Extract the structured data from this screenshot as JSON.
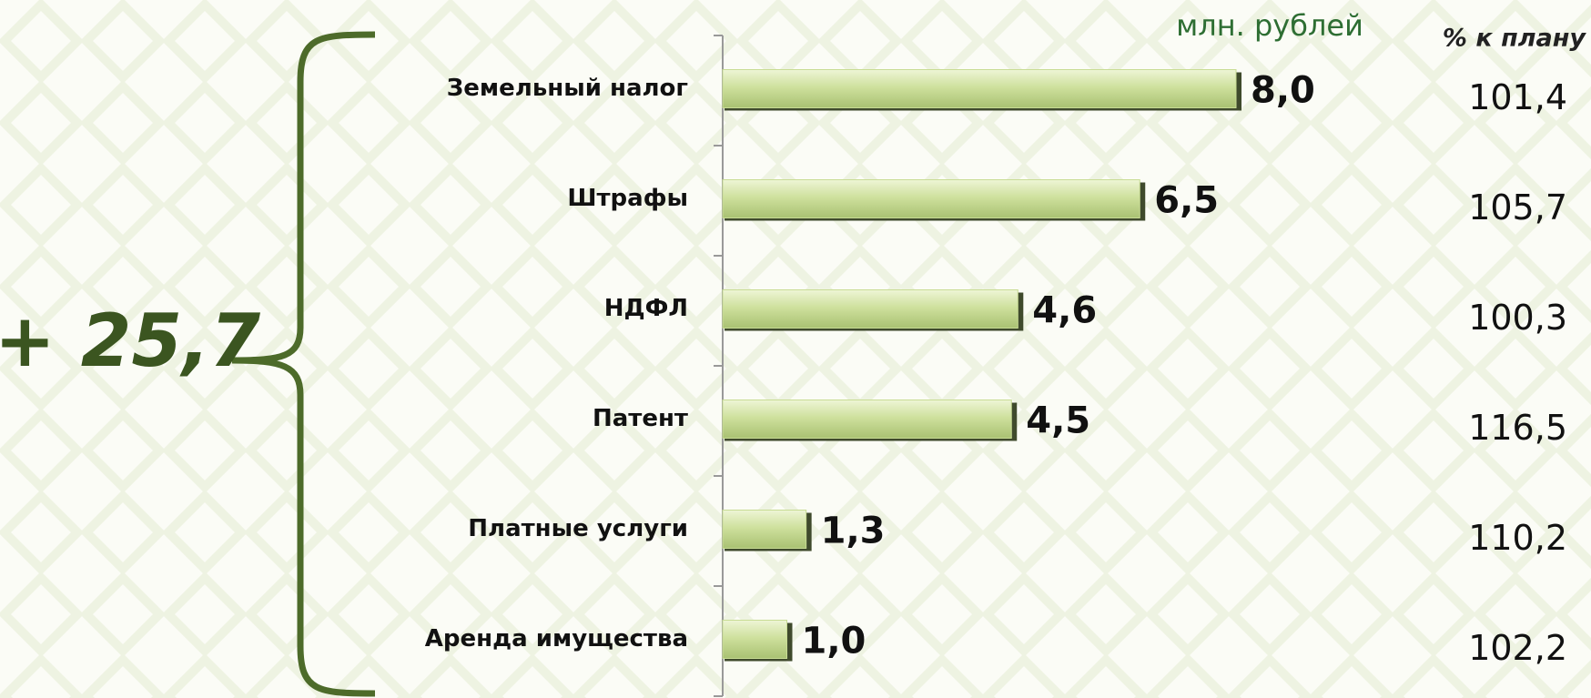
{
  "chart_data": {
    "type": "bar",
    "orientation": "horizontal",
    "unit_label": "млн. рублей",
    "total_annotation": "+ 25,7",
    "categories": [
      "Земельный налог",
      "Штрафы",
      "НДФЛ",
      "Патент",
      "Платные услуги",
      "Аренда имущества"
    ],
    "values": [
      8.0,
      6.5,
      4.6,
      4.5,
      1.3,
      1.0
    ],
    "value_labels": [
      "8,0",
      "6,5",
      "4,6",
      "4,5",
      "1,3",
      "1,0"
    ],
    "color": "#c8dc94",
    "xlim": [
      0,
      10
    ],
    "plan_column": {
      "title": "% к плану",
      "labels": [
        "101,4",
        "105,7",
        "100,3",
        "116,5",
        "110,2",
        "102,2"
      ]
    }
  }
}
